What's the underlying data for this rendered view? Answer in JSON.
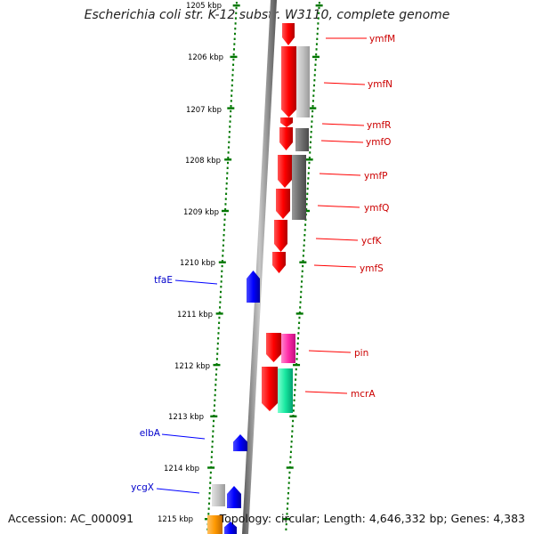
{
  "header": {
    "title": "Escherichia coli str. K-12 substr. W3110, complete genome"
  },
  "footer": {
    "accession": "Accession: AC_000091",
    "topology": "Topology: circular; Length: 4,646,332 bp; Genes: 4,383"
  },
  "ruler": {
    "ticks": [
      "1205 kbp",
      "1206 kbp",
      "1207 kbp",
      "1208 kbp",
      "1209 kbp",
      "1210 kbp",
      "1211 kbp",
      "1212 kbp",
      "1213 kbp",
      "1214 kbp",
      "1215 kbp"
    ]
  },
  "genes": [
    {
      "name": "ymfM",
      "color": "#ff0000"
    },
    {
      "name": "ymfN",
      "color": "#ff0000"
    },
    {
      "name": "ymfR",
      "color": "#ff0000"
    },
    {
      "name": "ymfO",
      "color": "#ff0000"
    },
    {
      "name": "ymfP",
      "color": "#ff0000"
    },
    {
      "name": "ymfQ",
      "color": "#ff0000"
    },
    {
      "name": "ycfK",
      "color": "#ff0000"
    },
    {
      "name": "ymfS",
      "color": "#ff0000"
    },
    {
      "name": "pin",
      "color": "#ff0000"
    },
    {
      "name": "mcrA",
      "color": "#ff0000"
    },
    {
      "name": "tfaE",
      "color": "#0000ff"
    },
    {
      "name": "elbA",
      "color": "#0000ff"
    },
    {
      "name": "ycgX",
      "color": "#0000ff"
    }
  ],
  "colors": {
    "forward_gene": "#ff0000",
    "reverse_gene": "#0000ff",
    "gray_feature": "#bbbbbb",
    "pink_feature": "#ff44bb",
    "teal_feature": "#00e5a0",
    "orange_feature": "#ff9900",
    "ruler": "#007700",
    "backbone": "#888888"
  }
}
